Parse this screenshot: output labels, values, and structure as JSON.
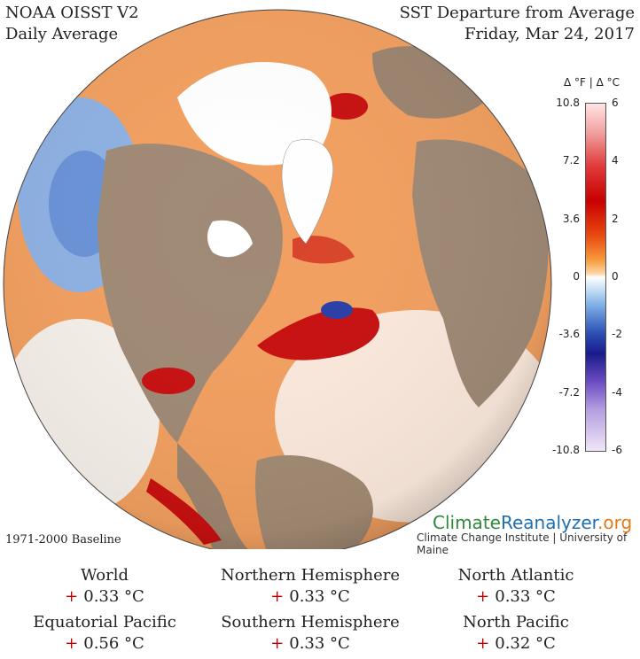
{
  "header": {
    "left_line1": "NOAA OISST V2",
    "left_line2": "Daily Average",
    "right_line1": "SST Departure from Average",
    "right_line2": "Friday, Mar 24, 2017"
  },
  "legend": {
    "units": "Δ °F  |  Δ °C",
    "fahrenheit_ticks": [
      "10.8",
      "7.2",
      "3.6",
      "0",
      "-3.6",
      "-7.2",
      "-10.8"
    ],
    "celsius_ticks": [
      "6",
      "4",
      "2",
      "0",
      "-2",
      "-4",
      "-6"
    ]
  },
  "footer": {
    "baseline": "1971-2000 Baseline",
    "brand_part1": "Climate",
    "brand_part2": "Reanalyzer",
    "brand_part3": ".org",
    "brand_sub": "Climate Change Institute | University of Maine"
  },
  "stats": [
    {
      "region": "World",
      "sign": "+",
      "value": "0.33 °C"
    },
    {
      "region": "Northern Hemisphere",
      "sign": "+",
      "value": "0.33 °C"
    },
    {
      "region": "North Atlantic",
      "sign": "+",
      "value": "0.33 °C"
    },
    {
      "region": "Equatorial Pacific",
      "sign": "+",
      "value": "0.56 °C"
    },
    {
      "region": "Southern Hemisphere",
      "sign": "+",
      "value": "0.33 °C"
    },
    {
      "region": "North Pacific",
      "sign": "+",
      "value": "0.32 °C"
    }
  ],
  "colors": {
    "ocean_warm": "#e8782a",
    "ocean_hot": "#c81010",
    "ocean_cool": "#7fa8e0",
    "ocean_cold": "#2a3ea8",
    "land": "#a08a76",
    "ice": "#ffffff"
  }
}
